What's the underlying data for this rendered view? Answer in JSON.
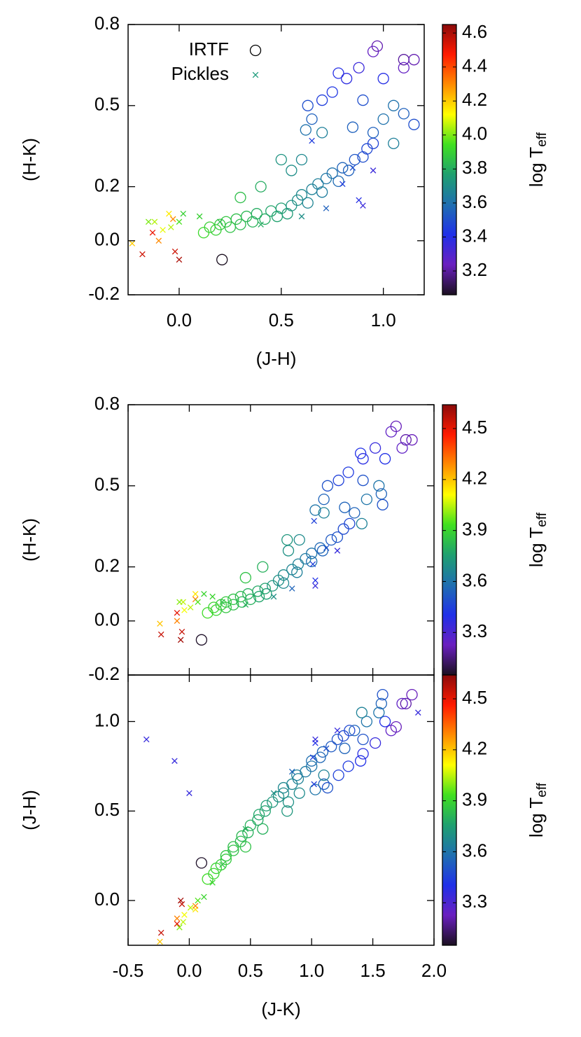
{
  "chart_data": [
    {
      "type": "scatter",
      "xlabel": "(J-H)",
      "ylabel": "(H-K)",
      "xlim": [
        -0.25,
        1.2
      ],
      "ylim": [
        -0.2,
        0.8
      ],
      "xticks": [
        {
          "value": 0,
          "label": "0.0"
        },
        0.5,
        {
          "value": 1,
          "label": "1.0"
        }
      ],
      "yticks": [
        0.8,
        0.5,
        0.2,
        {
          "value": 0,
          "label": "0.0"
        },
        -0.2
      ],
      "legend": true,
      "legend_loc": "top-left",
      "colorbar": {
        "label": "log T",
        "label_sub": "eff",
        "lim": [
          3.06,
          4.65
        ],
        "ticks": [
          4.6,
          4.4,
          4.2,
          {
            "value": 4,
            "label": "4.0"
          },
          3.8,
          3.6,
          3.4,
          3.2
        ],
        "colormap": [
          "#1b1020",
          "#6a1fc0",
          "#2030e8",
          "#1f6fb0",
          "#1fa070",
          "#40e020",
          "#ffff00",
          "#ff8c00",
          "#ff1a00",
          "#8b0a0a"
        ]
      },
      "series": [
        {
          "name": "IRTF",
          "marker": "circle",
          "color": "#000000",
          "x": [
            0.21,
            0.12,
            0.15,
            0.18,
            0.2,
            0.23,
            0.25,
            0.28,
            0.3,
            0.33,
            0.36,
            0.38,
            0.42,
            0.45,
            0.48,
            0.5,
            0.53,
            0.55,
            0.58,
            0.6,
            0.63,
            0.65,
            0.68,
            0.7,
            0.72,
            0.75,
            0.78,
            0.8,
            0.83,
            0.86,
            0.9,
            0.92,
            0.95,
            0.5,
            0.55,
            0.6,
            0.62,
            0.65,
            0.63,
            0.7,
            0.75,
            0.78,
            0.82,
            0.88,
            0.95,
            0.97,
            1.1,
            1.15,
            1.1,
            1.0,
            0.9,
            1.05,
            1.1,
            1.15,
            1.0,
            0.95,
            1.05,
            0.85,
            0.7,
            0.4,
            0.3
          ],
          "y": [
            -0.07,
            0.03,
            0.05,
            0.04,
            0.06,
            0.07,
            0.05,
            0.08,
            0.06,
            0.09,
            0.07,
            0.1,
            0.08,
            0.11,
            0.09,
            0.12,
            0.1,
            0.13,
            0.15,
            0.17,
            0.14,
            0.19,
            0.21,
            0.18,
            0.23,
            0.25,
            0.22,
            0.27,
            0.26,
            0.3,
            0.31,
            0.34,
            0.36,
            0.3,
            0.26,
            0.3,
            0.41,
            0.45,
            0.5,
            0.52,
            0.55,
            0.62,
            0.6,
            0.64,
            0.7,
            0.72,
            0.67,
            0.67,
            0.64,
            0.6,
            0.52,
            0.5,
            0.47,
            0.43,
            0.45,
            0.4,
            0.36,
            0.42,
            0.4,
            0.2,
            0.16
          ],
          "c": [
            3.06,
            3.92,
            3.9,
            3.9,
            3.88,
            3.87,
            3.86,
            3.85,
            3.84,
            3.83,
            3.82,
            3.8,
            3.8,
            3.78,
            3.77,
            3.76,
            3.75,
            3.72,
            3.7,
            3.68,
            3.67,
            3.66,
            3.65,
            3.64,
            3.62,
            3.6,
            3.58,
            3.56,
            3.55,
            3.52,
            3.5,
            3.48,
            3.47,
            3.72,
            3.7,
            3.68,
            3.6,
            3.55,
            3.5,
            3.45,
            3.43,
            3.4,
            3.38,
            3.35,
            3.25,
            3.22,
            3.2,
            3.22,
            3.25,
            3.4,
            3.5,
            3.6,
            3.55,
            3.5,
            3.6,
            3.55,
            3.65,
            3.55,
            3.65,
            3.8,
            3.85
          ]
        },
        {
          "name": "Pickles",
          "marker": "cross",
          "color": "#1a9a7a",
          "x": [
            -0.23,
            -0.18,
            -0.15,
            -0.13,
            -0.12,
            -0.1,
            -0.08,
            -0.05,
            -0.04,
            -0.03,
            -0.02,
            0.0,
            0.0,
            0.02,
            0.1,
            0.2,
            0.4,
            0.6,
            0.72,
            0.8,
            0.88,
            0.9,
            0.95,
            0.65,
            0.85
          ],
          "y": [
            -0.01,
            -0.05,
            0.07,
            0.03,
            0.07,
            0.0,
            0.04,
            0.1,
            0.05,
            0.08,
            -0.04,
            -0.07,
            0.07,
            0.1,
            0.09,
            0.07,
            0.06,
            0.09,
            0.12,
            0.21,
            0.15,
            0.13,
            0.26,
            0.37,
            0.27
          ],
          "c": [
            4.2,
            4.55,
            4.0,
            4.5,
            4.05,
            4.3,
            4.1,
            4.15,
            4.05,
            4.3,
            4.55,
            4.6,
            3.95,
            3.9,
            3.9,
            3.85,
            3.8,
            3.7,
            3.55,
            3.45,
            3.4,
            3.35,
            3.35,
            3.45,
            3.5
          ]
        }
      ]
    },
    {
      "type": "scatter",
      "ylabel": "(H-K)",
      "xlim": [
        -0.5,
        2.0
      ],
      "ylim": [
        -0.2,
        0.8
      ],
      "xtick_labels": false,
      "xticks": [
        -0.5,
        0,
        0.5,
        1,
        1.5,
        2
      ],
      "yticks": [
        0.8,
        0.5,
        0.2,
        {
          "value": 0,
          "label": "0.0"
        },
        -0.2
      ],
      "colorbar": {
        "label": "log T",
        "label_sub": "eff",
        "lim": [
          3.05,
          4.64
        ],
        "ticks": [
          4.5,
          4.2,
          3.9,
          3.6,
          3.3
        ],
        "colormap": [
          "#1b1020",
          "#6a1fc0",
          "#2030e8",
          "#1f6fb0",
          "#1fa070",
          "#40e020",
          "#ffff00",
          "#ff8c00",
          "#ff1a00",
          "#8b0a0a"
        ]
      },
      "series": [
        {
          "marker": "circle",
          "x": [
            0.1,
            0.15,
            0.2,
            0.22,
            0.26,
            0.3,
            0.3,
            0.36,
            0.36,
            0.42,
            0.43,
            0.48,
            0.5,
            0.56,
            0.57,
            0.62,
            0.63,
            0.68,
            0.73,
            0.77,
            0.77,
            0.84,
            0.89,
            0.88,
            0.95,
            1.0,
            1.0,
            1.07,
            1.09,
            1.16,
            1.21,
            1.26,
            1.31,
            0.8,
            0.81,
            0.9,
            1.03,
            1.1,
            1.13,
            1.22,
            1.3,
            1.4,
            1.42,
            1.52,
            1.65,
            1.69,
            1.77,
            1.82,
            1.74,
            1.6,
            1.42,
            1.55,
            1.57,
            1.58,
            1.45,
            1.35,
            1.41,
            1.27,
            1.1,
            0.6,
            0.46
          ],
          "y": [
            -0.07,
            0.03,
            0.05,
            0.04,
            0.06,
            0.07,
            0.05,
            0.08,
            0.06,
            0.09,
            0.07,
            0.1,
            0.08,
            0.11,
            0.09,
            0.12,
            0.1,
            0.13,
            0.15,
            0.17,
            0.14,
            0.19,
            0.21,
            0.18,
            0.23,
            0.25,
            0.22,
            0.27,
            0.26,
            0.3,
            0.31,
            0.34,
            0.36,
            0.3,
            0.26,
            0.3,
            0.41,
            0.45,
            0.5,
            0.52,
            0.55,
            0.62,
            0.6,
            0.64,
            0.7,
            0.72,
            0.67,
            0.67,
            0.64,
            0.6,
            0.52,
            0.5,
            0.47,
            0.43,
            0.45,
            0.4,
            0.36,
            0.42,
            0.4,
            0.2,
            0.16
          ],
          "c": [
            3.06,
            3.92,
            3.9,
            3.9,
            3.88,
            3.87,
            3.86,
            3.85,
            3.84,
            3.83,
            3.82,
            3.8,
            3.8,
            3.78,
            3.77,
            3.76,
            3.75,
            3.72,
            3.7,
            3.68,
            3.67,
            3.66,
            3.65,
            3.64,
            3.62,
            3.6,
            3.58,
            3.56,
            3.55,
            3.52,
            3.5,
            3.48,
            3.47,
            3.72,
            3.7,
            3.68,
            3.6,
            3.55,
            3.5,
            3.45,
            3.43,
            3.4,
            3.38,
            3.35,
            3.25,
            3.22,
            3.2,
            3.22,
            3.25,
            3.4,
            3.5,
            3.6,
            3.55,
            3.5,
            3.6,
            3.55,
            3.65,
            3.55,
            3.65,
            3.8,
            3.85
          ]
        },
        {
          "marker": "cross",
          "x": [
            -0.24,
            -0.23,
            -0.08,
            -0.1,
            -0.05,
            -0.1,
            -0.04,
            0.05,
            0.01,
            0.05,
            -0.06,
            -0.07,
            0.07,
            0.12,
            0.19,
            0.27,
            0.46,
            0.69,
            0.84,
            1.01,
            1.03,
            1.03,
            1.21,
            1.02,
            1.12
          ],
          "y": [
            -0.01,
            -0.05,
            0.07,
            0.03,
            0.07,
            0.0,
            0.04,
            0.1,
            0.05,
            0.08,
            -0.04,
            -0.07,
            0.07,
            0.1,
            0.09,
            0.07,
            0.06,
            0.09,
            0.12,
            0.21,
            0.15,
            0.13,
            0.26,
            0.37,
            0.27
          ],
          "c": [
            4.2,
            4.55,
            4.0,
            4.5,
            4.05,
            4.3,
            4.1,
            4.15,
            4.05,
            4.3,
            4.55,
            4.6,
            3.95,
            3.9,
            3.9,
            3.85,
            3.8,
            3.7,
            3.55,
            3.45,
            3.4,
            3.35,
            3.35,
            3.45,
            3.5
          ]
        }
      ]
    },
    {
      "type": "scatter",
      "xlabel": "(J-K)",
      "ylabel": "(J-H)",
      "xlim": [
        -0.5,
        2.0
      ],
      "ylim": [
        -0.25,
        1.26
      ],
      "xticks": [
        -0.5,
        {
          "value": 0,
          "label": "0.0"
        },
        0.5,
        {
          "value": 1,
          "label": "1.0"
        },
        1.5,
        {
          "value": 2,
          "label": "2.0"
        }
      ],
      "yticks": [
        {
          "value": 1,
          "label": "1.0"
        },
        0.5,
        {
          "value": 0,
          "label": "0.0"
        }
      ],
      "colorbar": {
        "label": "log T",
        "label_sub": "eff",
        "lim": [
          3.05,
          4.64
        ],
        "ticks": [
          4.5,
          4.2,
          3.9,
          3.6,
          3.3
        ],
        "colormap": [
          "#1b1020",
          "#6a1fc0",
          "#2030e8",
          "#1f6fb0",
          "#1fa070",
          "#40e020",
          "#ffff00",
          "#ff8c00",
          "#ff1a00",
          "#8b0a0a"
        ]
      },
      "series": [
        {
          "marker": "circle",
          "x": [
            0.1,
            0.15,
            0.2,
            0.22,
            0.26,
            0.3,
            0.3,
            0.36,
            0.36,
            0.42,
            0.43,
            0.48,
            0.5,
            0.56,
            0.57,
            0.62,
            0.63,
            0.68,
            0.73,
            0.77,
            0.77,
            0.84,
            0.89,
            0.88,
            0.95,
            1.0,
            1.0,
            1.07,
            1.09,
            1.16,
            1.21,
            1.26,
            1.31,
            0.8,
            0.81,
            0.9,
            1.03,
            1.1,
            1.13,
            1.22,
            1.3,
            1.4,
            1.42,
            1.52,
            1.65,
            1.69,
            1.77,
            1.82,
            1.74,
            1.6,
            1.42,
            1.55,
            1.57,
            1.58,
            1.45,
            1.35,
            1.41,
            1.27,
            1.1,
            0.6,
            0.46
          ],
          "y": [
            0.21,
            0.12,
            0.15,
            0.18,
            0.2,
            0.23,
            0.25,
            0.28,
            0.3,
            0.33,
            0.36,
            0.38,
            0.42,
            0.45,
            0.48,
            0.5,
            0.53,
            0.55,
            0.58,
            0.6,
            0.63,
            0.65,
            0.68,
            0.7,
            0.72,
            0.75,
            0.78,
            0.8,
            0.83,
            0.86,
            0.9,
            0.92,
            0.95,
            0.5,
            0.55,
            0.6,
            0.62,
            0.65,
            0.63,
            0.7,
            0.75,
            0.78,
            0.82,
            0.88,
            0.95,
            0.97,
            1.1,
            1.15,
            1.1,
            1.0,
            0.9,
            1.05,
            1.1,
            1.15,
            1.0,
            0.95,
            1.05,
            0.85,
            0.7,
            0.4,
            0.3
          ],
          "c": [
            3.06,
            3.92,
            3.9,
            3.9,
            3.88,
            3.87,
            3.86,
            3.85,
            3.84,
            3.83,
            3.82,
            3.8,
            3.8,
            3.78,
            3.77,
            3.76,
            3.75,
            3.72,
            3.7,
            3.68,
            3.67,
            3.66,
            3.65,
            3.64,
            3.62,
            3.6,
            3.58,
            3.56,
            3.55,
            3.52,
            3.5,
            3.48,
            3.47,
            3.72,
            3.7,
            3.68,
            3.6,
            3.55,
            3.5,
            3.45,
            3.43,
            3.4,
            3.38,
            3.35,
            3.25,
            3.22,
            3.2,
            3.22,
            3.25,
            3.4,
            3.5,
            3.6,
            3.55,
            3.5,
            3.6,
            3.55,
            3.65,
            3.55,
            3.65,
            3.8,
            3.85
          ]
        },
        {
          "marker": "cross",
          "x": [
            -0.24,
            -0.23,
            -0.08,
            -0.1,
            -0.05,
            -0.1,
            -0.04,
            0.05,
            0.01,
            0.05,
            -0.06,
            -0.07,
            0.07,
            0.12,
            0.19,
            0.27,
            0.46,
            0.69,
            0.84,
            1.01,
            1.03,
            1.03,
            1.21,
            1.02,
            1.12,
            -0.35,
            -0.12,
            0.0,
            1.87
          ],
          "y": [
            -0.23,
            -0.18,
            -0.15,
            -0.13,
            -0.12,
            -0.1,
            -0.08,
            -0.05,
            -0.04,
            -0.03,
            -0.02,
            0.0,
            0.0,
            0.02,
            0.1,
            0.2,
            0.4,
            0.6,
            0.72,
            0.8,
            0.88,
            0.9,
            0.95,
            0.65,
            0.85,
            0.9,
            0.78,
            0.6,
            1.05
          ],
          "c": [
            4.2,
            4.55,
            4.0,
            4.5,
            4.05,
            4.3,
            4.1,
            4.15,
            4.05,
            4.3,
            4.55,
            4.6,
            3.95,
            3.9,
            3.9,
            3.85,
            3.8,
            3.7,
            3.55,
            3.45,
            3.4,
            3.35,
            3.35,
            3.45,
            3.5,
            3.35,
            3.35,
            3.35,
            3.35
          ]
        }
      ]
    }
  ]
}
